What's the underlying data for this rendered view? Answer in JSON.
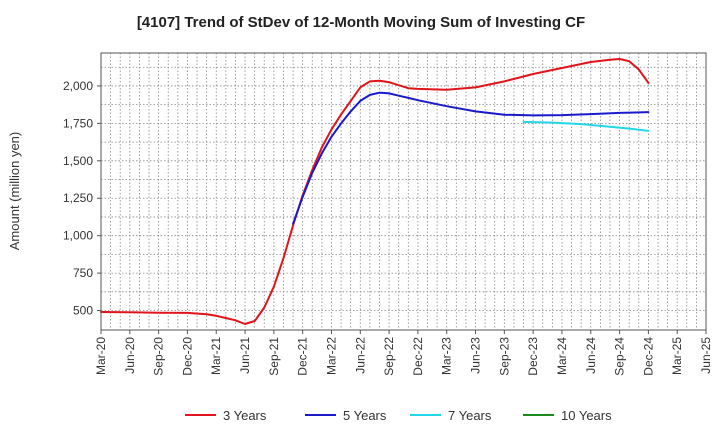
{
  "chart_data": {
    "type": "line",
    "title": "[4107]  Trend of StDev of 12-Month Moving Sum of Investing CF",
    "xlabel": "",
    "ylabel": "Amount (million yen)",
    "ylim": [
      370,
      2220
    ],
    "yticks": [
      500,
      750,
      1000,
      1250,
      1500,
      1750,
      2000
    ],
    "ytick_labels": [
      "500",
      "750",
      "1,000",
      "1,250",
      "1,500",
      "1,750",
      "2,000"
    ],
    "xlim": [
      0,
      63
    ],
    "xtick_positions": [
      0,
      3,
      6,
      9,
      12,
      15,
      18,
      21,
      24,
      27,
      30,
      33,
      36,
      39,
      42,
      45,
      48,
      51,
      54,
      57,
      60,
      63
    ],
    "xtick_labels": [
      "Mar-20",
      "Jun-20",
      "Sep-20",
      "Dec-20",
      "Mar-21",
      "Jun-21",
      "Sep-21",
      "Dec-21",
      "Mar-22",
      "Jun-22",
      "Sep-22",
      "Dec-22",
      "Mar-23",
      "Jun-23",
      "Sep-23",
      "Dec-23",
      "Mar-24",
      "Jun-24",
      "Sep-24",
      "Dec-24",
      "Mar-25",
      "Jun-25"
    ],
    "grid": true,
    "legend_position": "bottom",
    "series": [
      {
        "name": "3 Years",
        "color": "#e0141a",
        "x": [
          0,
          3,
          6,
          9,
          11,
          12,
          13,
          14,
          15,
          16,
          17,
          18,
          19,
          20,
          21,
          22,
          23,
          24,
          25,
          26,
          27,
          28,
          29,
          30,
          31,
          32,
          33,
          36,
          39,
          42,
          45,
          48,
          51,
          53,
          54,
          55,
          56,
          57
        ],
        "y": [
          490,
          488,
          485,
          484,
          475,
          465,
          450,
          435,
          410,
          430,
          520,
          660,
          850,
          1070,
          1270,
          1440,
          1590,
          1710,
          1810,
          1900,
          1990,
          2030,
          2035,
          2025,
          2005,
          1985,
          1980,
          1975,
          1990,
          2030,
          2080,
          2120,
          2160,
          2175,
          2180,
          2165,
          2110,
          2020
        ]
      },
      {
        "name": "5 Years",
        "color": "#1a1acc",
        "x": [
          20,
          21,
          22,
          23,
          24,
          25,
          26,
          27,
          28,
          29,
          30,
          31,
          32,
          33,
          36,
          39,
          42,
          45,
          48,
          51,
          54,
          57
        ],
        "y": [
          1080,
          1260,
          1420,
          1550,
          1660,
          1750,
          1830,
          1900,
          1940,
          1955,
          1950,
          1935,
          1920,
          1905,
          1865,
          1830,
          1808,
          1803,
          1805,
          1812,
          1820,
          1825
        ]
      },
      {
        "name": "7 Years",
        "color": "#22d8e8",
        "x": [
          44,
          47,
          50,
          53,
          55,
          57
        ],
        "y": [
          1760,
          1755,
          1745,
          1728,
          1715,
          1700
        ]
      },
      {
        "name": "10 Years",
        "color": "#1a8a1a",
        "x": [],
        "y": []
      }
    ]
  }
}
